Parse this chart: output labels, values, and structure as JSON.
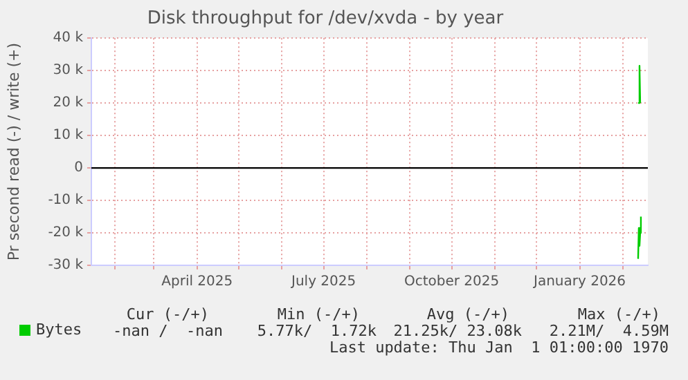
{
  "chart_data": {
    "type": "line",
    "title": "Disk throughput for /dev/xvda - by year",
    "ylabel": "Pr second read (-) / write (+)",
    "series": [
      {
        "name": "Bytes",
        "color": "#00cc00",
        "x": [
          "2026-02-12T00:00",
          "2026-02-12T12:00",
          "2026-02-13T00:00",
          "2026-02-13T12:00",
          "2026-02-14T00:00",
          null,
          "2026-02-12T00:00",
          "2026-02-12T12:00",
          "2026-02-13T00:00",
          "2026-02-13T12:00",
          "2026-02-14T00:00"
        ],
        "values": [
          20000,
          20000,
          31500,
          20000,
          20000,
          null,
          -28000,
          -18500,
          -24000,
          -20000,
          -15000
        ]
      }
    ],
    "xlim": [
      "2025-01-15",
      "2026-02-19"
    ],
    "xticks": [
      {
        "value": "2025-02-01",
        "label": null
      },
      {
        "value": "2025-03-01",
        "label": null
      },
      {
        "value": "2025-04-01",
        "label": "April 2025"
      },
      {
        "value": "2025-05-01",
        "label": null
      },
      {
        "value": "2025-06-01",
        "label": null
      },
      {
        "value": "2025-07-01",
        "label": "July 2025"
      },
      {
        "value": "2025-08-01",
        "label": null
      },
      {
        "value": "2025-09-01",
        "label": null
      },
      {
        "value": "2025-10-01",
        "label": "October 2025"
      },
      {
        "value": "2025-11-01",
        "label": null
      },
      {
        "value": "2025-12-01",
        "label": null
      },
      {
        "value": "2026-01-01",
        "label": "January 2026"
      },
      {
        "value": "2026-02-01",
        "label": null
      }
    ],
    "ylim": [
      -30000,
      40000
    ],
    "yticks": [
      {
        "value": -30000,
        "label": "-30 k"
      },
      {
        "value": -20000,
        "label": "-20 k"
      },
      {
        "value": -10000,
        "label": "-10 k"
      },
      0,
      {
        "value": 10000,
        "label": "10 k"
      },
      {
        "value": 20000,
        "label": "20 k"
      },
      {
        "value": 30000,
        "label": "30 k"
      },
      {
        "value": 40000,
        "label": "40 k"
      }
    ],
    "grid": true,
    "legend": "bottom left",
    "marker": "none",
    "ref_lines": [
      {
        "axis": "y",
        "value": 0,
        "color": "#000000"
      }
    ],
    "annotations": [
      "Cur (-/+)",
      "Min (-/+)",
      "Avg (-/+)",
      "Max (-/+)",
      "-nan /  -nan",
      "5.77k/  1.72k",
      "21.25k/ 23.08k",
      "2.21M/  4.59M",
      "Last update: Thu Jan  1 01:00:00 1970"
    ]
  }
}
